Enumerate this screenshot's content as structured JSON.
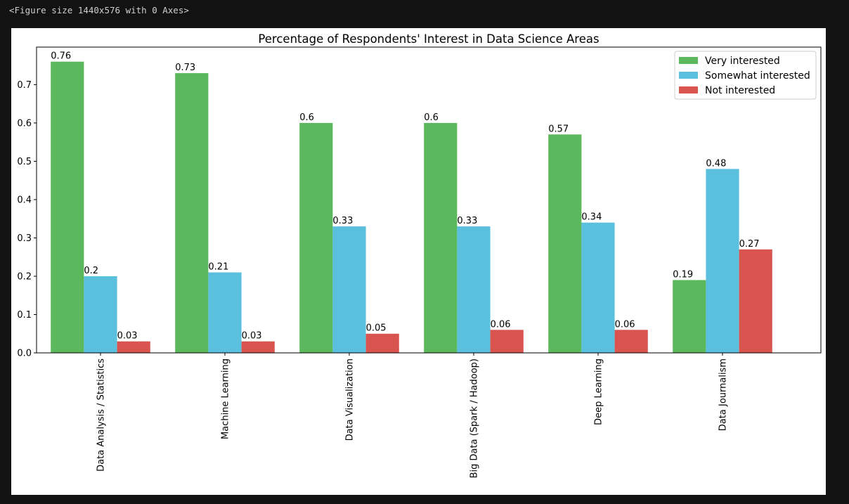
{
  "output_header": "<Figure size 1440x576 with 0 Axes>",
  "chart_data": {
    "type": "bar",
    "title": "Percentage of Respondents' Interest in Data Science Areas",
    "xlabel": "",
    "ylabel": "",
    "categories": [
      "Data Analysis / Statistics",
      "Machine Learning",
      "Data Visualization",
      "Big Data (Spark / Hadoop)",
      "Deep Learning",
      "Data Journalism"
    ],
    "series": [
      {
        "name": "Very interested",
        "color": "#5cb85c",
        "values": [
          0.76,
          0.73,
          0.6,
          0.6,
          0.57,
          0.19
        ]
      },
      {
        "name": "Somewhat interested",
        "color": "#5bc0de",
        "values": [
          0.2,
          0.21,
          0.33,
          0.33,
          0.34,
          0.48
        ]
      },
      {
        "name": "Not interested",
        "color": "#d9534f",
        "values": [
          0.03,
          0.03,
          0.05,
          0.06,
          0.06,
          0.27
        ]
      }
    ],
    "yticks": [
      "0.0",
      "0.1",
      "0.2",
      "0.3",
      "0.4",
      "0.5",
      "0.6",
      "0.7"
    ],
    "ylim": [
      0,
      0.798
    ],
    "grid": false,
    "legend_position": "top-right",
    "data_labels": true
  }
}
